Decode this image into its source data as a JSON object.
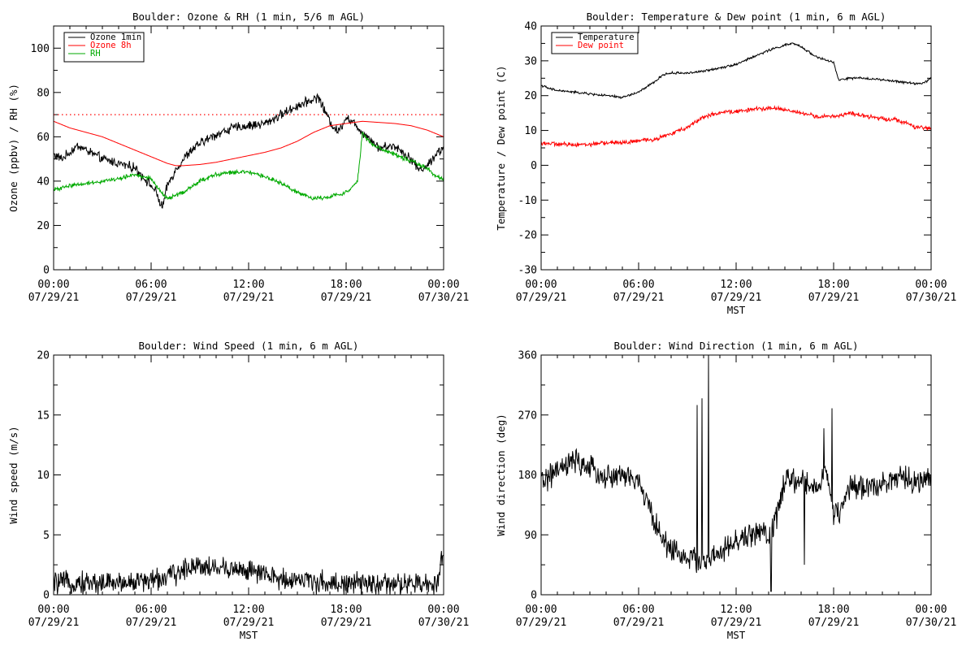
{
  "chart_data": [
    {
      "type": "line",
      "title": "Boulder: Ozone & RH (1 min, 5/6 m AGL)",
      "xlabel": "",
      "ylabel": "Ozone (ppbv) / RH (%)",
      "xlim": [
        0,
        24
      ],
      "ylim": [
        0,
        110
      ],
      "yticks": [
        0,
        20,
        40,
        60,
        80,
        100
      ],
      "xticks": [
        {
          "hour": 0,
          "time": "00:00",
          "date": "07/29/21"
        },
        {
          "hour": 6,
          "time": "06:00",
          "date": "07/29/21"
        },
        {
          "hour": 12,
          "time": "12:00",
          "date": "07/29/21"
        },
        {
          "hour": 18,
          "time": "18:00",
          "date": "07/29/21"
        },
        {
          "hour": 24,
          "time": "00:00",
          "date": "07/30/21"
        }
      ],
      "legend": {
        "placement": "top-left"
      },
      "reference_line": {
        "value": 70,
        "style": "dotted",
        "color": "#ff0000"
      },
      "series": [
        {
          "name": "Ozone 1min",
          "color": "#000000",
          "noise": 1.6,
          "points": [
            [
              0,
              52
            ],
            [
              0.5,
              50
            ],
            [
              1,
              53
            ],
            [
              1.5,
              56
            ],
            [
              2,
              54
            ],
            [
              3,
              50
            ],
            [
              4,
              48
            ],
            [
              5,
              46
            ],
            [
              5.5,
              42
            ],
            [
              6,
              38
            ],
            [
              6.3,
              35
            ],
            [
              6.5,
              31
            ],
            [
              6.7,
              28
            ],
            [
              7,
              38
            ],
            [
              7.5,
              45
            ],
            [
              8,
              50
            ],
            [
              8.5,
              54
            ],
            [
              9,
              57
            ],
            [
              10,
              61
            ],
            [
              11,
              64
            ],
            [
              12,
              65
            ],
            [
              13,
              66
            ],
            [
              14,
              70
            ],
            [
              15,
              74
            ],
            [
              16,
              77
            ],
            [
              16.3,
              78
            ],
            [
              16.6,
              73
            ],
            [
              17,
              67
            ],
            [
              17.5,
              62
            ],
            [
              18,
              69
            ],
            [
              18.5,
              66
            ],
            [
              19,
              62
            ],
            [
              19.5,
              59
            ],
            [
              20,
              55
            ],
            [
              21,
              56
            ],
            [
              22,
              50
            ],
            [
              22.5,
              45
            ],
            [
              23,
              47
            ],
            [
              23.5,
              52
            ],
            [
              24,
              55
            ]
          ]
        },
        {
          "name": "Ozone 8h",
          "color": "#ff0000",
          "noise": 0,
          "points": [
            [
              0,
              67
            ],
            [
              1,
              64
            ],
            [
              2,
              62
            ],
            [
              3,
              60
            ],
            [
              4,
              57
            ],
            [
              5,
              54
            ],
            [
              6,
              51
            ],
            [
              7,
              48
            ],
            [
              7.5,
              47
            ],
            [
              8,
              47
            ],
            [
              9,
              47.5
            ],
            [
              10,
              48.5
            ],
            [
              11,
              50
            ],
            [
              12,
              51.5
            ],
            [
              13,
              53
            ],
            [
              14,
              55
            ],
            [
              15,
              58
            ],
            [
              16,
              62
            ],
            [
              17,
              65
            ],
            [
              18,
              66
            ],
            [
              19,
              67
            ],
            [
              20,
              66.5
            ],
            [
              21,
              66
            ],
            [
              22,
              65
            ],
            [
              23,
              63
            ],
            [
              24,
              60
            ]
          ]
        },
        {
          "name": "RH",
          "color": "#00aa00",
          "noise": 0.7,
          "points": [
            [
              0,
              36
            ],
            [
              1,
              38
            ],
            [
              2,
              39
            ],
            [
              3,
              40
            ],
            [
              4,
              41
            ],
            [
              5,
              43
            ],
            [
              6,
              41
            ],
            [
              6.5,
              36
            ],
            [
              7,
              32
            ],
            [
              8,
              35
            ],
            [
              9,
              40
            ],
            [
              10,
              43
            ],
            [
              11,
              44
            ],
            [
              12,
              44
            ],
            [
              13,
              42
            ],
            [
              14,
              39
            ],
            [
              15,
              35
            ],
            [
              16,
              32
            ],
            [
              17,
              33
            ],
            [
              18,
              35
            ],
            [
              18.5,
              38
            ],
            [
              18.7,
              40
            ],
            [
              18.85,
              50
            ],
            [
              19,
              62
            ],
            [
              19.5,
              57
            ],
            [
              20,
              55
            ],
            [
              21,
              52
            ],
            [
              22,
              49
            ],
            [
              23,
              46
            ],
            [
              23.5,
              42
            ],
            [
              24,
              41
            ]
          ]
        }
      ]
    },
    {
      "type": "line",
      "title": "Boulder: Temperature & Dew point (1 min, 6 m AGL)",
      "xlabel": "MST",
      "ylabel": "Temperature / Dew point (C)",
      "xlim": [
        0,
        24
      ],
      "ylim": [
        -30,
        40
      ],
      "yticks": [
        -30,
        -20,
        -10,
        0,
        10,
        20,
        30,
        40
      ],
      "xticks": [
        {
          "hour": 0,
          "time": "00:00",
          "date": "07/29/21"
        },
        {
          "hour": 6,
          "time": "06:00",
          "date": "07/29/21"
        },
        {
          "hour": 12,
          "time": "12:00",
          "date": "07/29/21"
        },
        {
          "hour": 18,
          "time": "18:00",
          "date": "07/29/21"
        },
        {
          "hour": 24,
          "time": "00:00",
          "date": "07/30/21"
        }
      ],
      "legend": {
        "placement": "top-left"
      },
      "series": [
        {
          "name": "Temperature",
          "color": "#000000",
          "noise": 0.25,
          "points": [
            [
              0,
              23
            ],
            [
              0.5,
              22
            ],
            [
              1,
              21.5
            ],
            [
              2,
              21
            ],
            [
              3,
              20.5
            ],
            [
              4,
              20
            ],
            [
              5,
              19.5
            ],
            [
              6,
              21
            ],
            [
              7,
              24
            ],
            [
              7.5,
              26
            ],
            [
              8,
              26.5
            ],
            [
              9,
              26.5
            ],
            [
              10,
              27
            ],
            [
              11,
              28
            ],
            [
              12,
              29
            ],
            [
              13,
              31
            ],
            [
              14,
              33
            ],
            [
              15,
              34.5
            ],
            [
              15.5,
              35
            ],
            [
              16,
              34
            ],
            [
              17,
              31
            ],
            [
              18,
              29.5
            ],
            [
              18.3,
              24.5
            ],
            [
              19,
              25
            ],
            [
              20,
              25
            ],
            [
              21,
              24.5
            ],
            [
              22,
              24
            ],
            [
              23,
              23.5
            ],
            [
              23.5,
              23.5
            ],
            [
              24,
              25
            ]
          ]
        },
        {
          "name": "Dew point",
          "color": "#ff0000",
          "noise": 0.45,
          "points": [
            [
              0,
              6.5
            ],
            [
              1,
              6
            ],
            [
              2,
              6
            ],
            [
              3,
              6
            ],
            [
              4,
              6.5
            ],
            [
              5,
              6.5
            ],
            [
              6,
              7
            ],
            [
              7,
              7.5
            ],
            [
              8,
              9
            ],
            [
              9,
              11
            ],
            [
              10,
              14
            ],
            [
              11,
              15
            ],
            [
              12,
              15.5
            ],
            [
              13,
              16
            ],
            [
              14,
              16.5
            ],
            [
              15,
              16
            ],
            [
              16,
              15
            ],
            [
              17,
              14
            ],
            [
              18,
              14
            ],
            [
              19,
              15
            ],
            [
              20,
              14
            ],
            [
              21,
              13.5
            ],
            [
              22,
              13
            ],
            [
              23,
              11
            ],
            [
              24,
              10.5
            ]
          ]
        }
      ]
    },
    {
      "type": "line",
      "title": "Boulder: Wind Speed (1 min, 6 m AGL)",
      "xlabel": "MST",
      "ylabel": "Wind speed (m/s)",
      "xlim": [
        0,
        24
      ],
      "ylim": [
        0,
        20
      ],
      "yticks": [
        0,
        5,
        10,
        15,
        20
      ],
      "xticks": [
        {
          "hour": 0,
          "time": "00:00",
          "date": "07/29/21"
        },
        {
          "hour": 6,
          "time": "06:00",
          "date": "07/29/21"
        },
        {
          "hour": 12,
          "time": "12:00",
          "date": "07/29/21"
        },
        {
          "hour": 18,
          "time": "18:00",
          "date": "07/29/21"
        },
        {
          "hour": 24,
          "time": "00:00",
          "date": "07/30/21"
        }
      ],
      "series": [
        {
          "color": "#000000",
          "noise": 0.7,
          "floor": 0,
          "points": [
            [
              0,
              1
            ],
            [
              2,
              1
            ],
            [
              4,
              1
            ],
            [
              5,
              1.1
            ],
            [
              6,
              1.2
            ],
            [
              7,
              1.5
            ],
            [
              8,
              2
            ],
            [
              8.5,
              2.5
            ],
            [
              9,
              2.5
            ],
            [
              10,
              2.2
            ],
            [
              11,
              2.2
            ],
            [
              12,
              2
            ],
            [
              13,
              1.6
            ],
            [
              14,
              1.3
            ],
            [
              15,
              1.3
            ],
            [
              16,
              1.1
            ],
            [
              17,
              1
            ],
            [
              18,
              0.9
            ],
            [
              19,
              0.9
            ],
            [
              20,
              0.9
            ],
            [
              21,
              0.8
            ],
            [
              22,
              0.9
            ],
            [
              23,
              0.8
            ],
            [
              23.6,
              0.9
            ],
            [
              23.8,
              3
            ],
            [
              24,
              3.2
            ]
          ]
        }
      ]
    },
    {
      "type": "line",
      "title": "Boulder: Wind Direction (1 min, 6 m AGL)",
      "xlabel": "MST",
      "ylabel": "Wind direction (deg)",
      "xlim": [
        0,
        24
      ],
      "ylim": [
        0,
        360
      ],
      "yticks": [
        0,
        90,
        180,
        270,
        360
      ],
      "xticks": [
        {
          "hour": 0,
          "time": "00:00",
          "date": "07/29/21"
        },
        {
          "hour": 6,
          "time": "06:00",
          "date": "07/29/21"
        },
        {
          "hour": 12,
          "time": "12:00",
          "date": "07/29/21"
        },
        {
          "hour": 18,
          "time": "18:00",
          "date": "07/29/21"
        },
        {
          "hour": 24,
          "time": "00:00",
          "date": "07/30/21"
        }
      ],
      "series": [
        {
          "color": "#000000",
          "noise": 14,
          "floor": 0,
          "ceil": 360,
          "points": [
            [
              0,
              170
            ],
            [
              1,
              185
            ],
            [
              2,
              200
            ],
            [
              3,
              190
            ],
            [
              4,
              175
            ],
            [
              5,
              180
            ],
            [
              6,
              170
            ],
            [
              6.5,
              140
            ],
            [
              7,
              110
            ],
            [
              7.5,
              80
            ],
            [
              8,
              70
            ],
            [
              9,
              55
            ],
            [
              10,
              50
            ],
            [
              11,
              60
            ],
            [
              12,
              80
            ],
            [
              13,
              90
            ],
            [
              13.5,
              100
            ],
            [
              14,
              80
            ],
            [
              14.5,
              120
            ],
            [
              15,
              170
            ],
            [
              16,
              170
            ],
            [
              17,
              160
            ],
            [
              17.5,
              190
            ],
            [
              18,
              120
            ],
            [
              18.5,
              130
            ],
            [
              19,
              160
            ],
            [
              20,
              160
            ],
            [
              21,
              170
            ],
            [
              22,
              175
            ],
            [
              23,
              170
            ],
            [
              24,
              170
            ]
          ],
          "spikes": [
            [
              9.6,
              285
            ],
            [
              9.9,
              295
            ],
            [
              10.3,
              360
            ],
            [
              14.15,
              5
            ],
            [
              16.2,
              45
            ],
            [
              17.4,
              250
            ],
            [
              17.9,
              280
            ]
          ]
        }
      ]
    }
  ]
}
